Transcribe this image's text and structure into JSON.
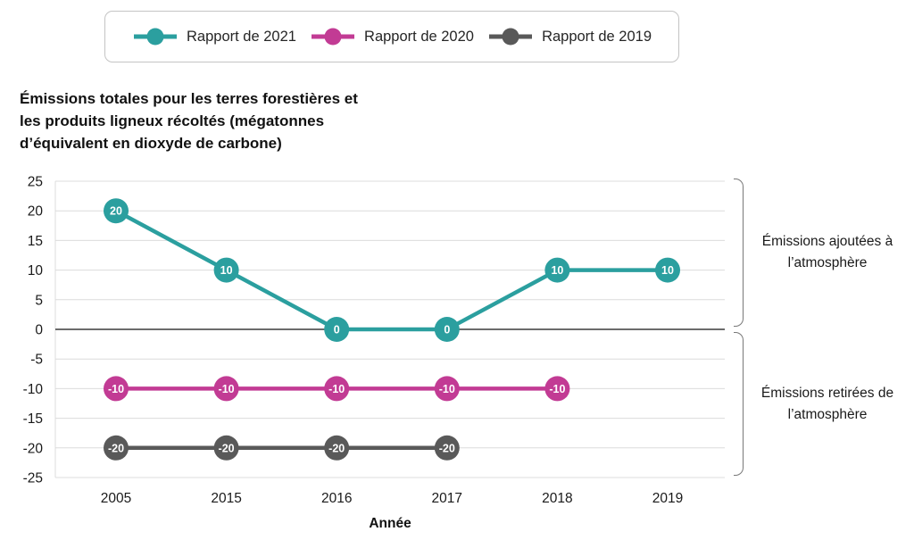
{
  "legend": {
    "items": [
      {
        "id": "rapport-2021",
        "label": "Rapport de 2021",
        "color": "#2b9f9f"
      },
      {
        "id": "rapport-2020",
        "label": "Rapport de 2020",
        "color": "#c23b94"
      },
      {
        "id": "rapport-2019",
        "label": "Rapport de 2019",
        "color": "#595959"
      }
    ]
  },
  "title": "Émissions totales pour les terres forestières et les produits ligneux récoltés (mégatonnes d’équivalent en dioxyde de carbone)",
  "chart_data": {
    "type": "line",
    "categories": [
      "2005",
      "2015",
      "2016",
      "2017",
      "2018",
      "2019"
    ],
    "series": [
      {
        "name": "Rapport de 2021",
        "color": "#2b9f9f",
        "values": [
          20,
          10,
          0,
          0,
          10,
          10
        ]
      },
      {
        "name": "Rapport de 2020",
        "color": "#c23b94",
        "values": [
          -10,
          -10,
          -10,
          -10,
          -10,
          null
        ]
      },
      {
        "name": "Rapport de 2019",
        "color": "#595959",
        "values": [
          -20,
          -20,
          -20,
          -20,
          null,
          null
        ]
      }
    ],
    "xlabel": "Année",
    "ylabel": "",
    "ylim": [
      -25,
      25
    ],
    "ytick_step": 5,
    "grid": true,
    "legend_position": "top",
    "data_labels": true
  },
  "annotations": [
    {
      "id": "added",
      "label": "Émissions ajoutées à l’atmosphère"
    },
    {
      "id": "removed",
      "label": "Émissions retirées de l’atmosphère"
    }
  ]
}
